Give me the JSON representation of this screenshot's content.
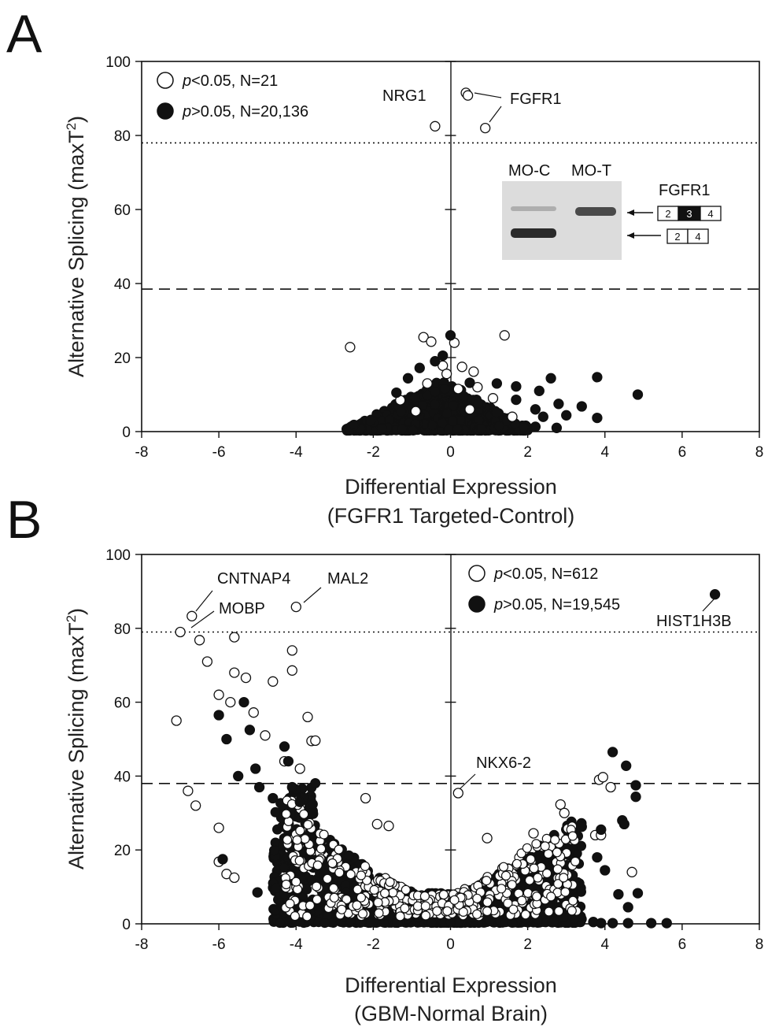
{
  "chart_data": [
    {
      "type": "scatter",
      "panel": "A",
      "xlabel": "Differential Expression",
      "xlabel2": "(FGFR1 Targeted-Control)",
      "ylabel": "Alternative Splicing (maxT",
      "ylabel_sup": "2",
      "ylabel_close": ")",
      "xlim": [
        -8,
        8
      ],
      "ylim": [
        0,
        100
      ],
      "xticks": [
        -8,
        -6,
        -4,
        -2,
        0,
        2,
        4,
        6,
        8
      ],
      "yticks": [
        0,
        20,
        40,
        60,
        80,
        100
      ],
      "xtick_labels": [
        "-8",
        "-6",
        "-4",
        "-2",
        "0",
        "2",
        "4",
        "6",
        "8"
      ],
      "ytick_labels": [
        "0",
        "20",
        "40",
        "60",
        "80",
        "100"
      ],
      "thresholds": {
        "dotted": 78,
        "dashed": 38.5
      },
      "legend": {
        "placement": "top-left",
        "open": {
          "p": "p",
          "text": "<0.05, N=21"
        },
        "filled": {
          "p": "p",
          "text": ">0.05, N=20,136"
        }
      },
      "series": [
        {
          "name": "p<0.05",
          "marker": "open",
          "points": [
            [
              -0.4,
              82.5
            ],
            [
              0.4,
              91.5
            ],
            [
              0.45,
              90.8
            ],
            [
              0.9,
              82
            ],
            [
              -2.6,
              22.8
            ],
            [
              -0.7,
              25.5
            ],
            [
              -0.5,
              24.3
            ],
            [
              0.1,
              24
            ],
            [
              1.4,
              26
            ],
            [
              0.3,
              17.5
            ],
            [
              -0.2,
              17.8
            ],
            [
              0.6,
              16.2
            ],
            [
              -0.1,
              15.6
            ],
            [
              0.7,
              12
            ],
            [
              -0.6,
              13
            ],
            [
              0.2,
              11.5
            ],
            [
              1.1,
              9
            ],
            [
              -1.3,
              8.5
            ],
            [
              0.5,
              6
            ],
            [
              -0.9,
              5.5
            ],
            [
              1.6,
              4
            ]
          ]
        },
        {
          "name": "p>0.05",
          "marker": "filled",
          "points": [
            [
              4.85,
              10
            ],
            [
              3.8,
              14.7
            ],
            [
              2.6,
              14.4
            ],
            [
              3.8,
              3.7
            ],
            [
              3.4,
              6.8
            ],
            [
              2.8,
              7.5
            ],
            [
              2.3,
              11
            ],
            [
              2.2,
              6
            ],
            [
              1.7,
              12.2
            ],
            [
              1.7,
              8.6
            ],
            [
              -0.4,
              19
            ],
            [
              -0.8,
              17.2
            ],
            [
              0.0,
              26
            ],
            [
              -1.1,
              14.4
            ],
            [
              0.5,
              13.2
            ],
            [
              -0.2,
              20.5
            ],
            [
              -2.5,
              1.8
            ],
            [
              2.75,
              1.0
            ],
            [
              2.2,
              1.3
            ],
            [
              2.4,
              4.0
            ],
            [
              3.0,
              4.4
            ],
            [
              -1.4,
              10.5
            ],
            [
              1.2,
              13.0
            ]
          ]
        }
      ],
      "cluster": {
        "x_range": [
          -2.7,
          2.0
        ],
        "y_peak": 14
      },
      "annotations": [
        {
          "text": "NRG1",
          "x": -0.4,
          "y": 82.5
        },
        {
          "text": "FGFR1",
          "x": 0.9,
          "y": 82
        }
      ],
      "inset": {
        "lanes": [
          "MO-C",
          "MO-T"
        ],
        "gene": "FGFR1",
        "isoform_long": [
          "2",
          "3",
          "4"
        ],
        "isoform_short": [
          "2",
          "4"
        ]
      }
    },
    {
      "type": "scatter",
      "panel": "B",
      "xlabel": "Differential Expression",
      "xlabel2": "(GBM-Normal Brain)",
      "ylabel": "Alternative Splicing (maxT",
      "ylabel_sup": "2",
      "ylabel_close": ")",
      "xlim": [
        -8,
        8
      ],
      "ylim": [
        0,
        100
      ],
      "xticks": [
        -8,
        -6,
        -4,
        -2,
        0,
        2,
        4,
        6,
        8
      ],
      "yticks": [
        0,
        20,
        40,
        60,
        80,
        100
      ],
      "xtick_labels": [
        "-8",
        "-6",
        "-4",
        "-2",
        "0",
        "2",
        "4",
        "6",
        "8"
      ],
      "ytick_labels": [
        "0",
        "20",
        "40",
        "60",
        "80",
        "100"
      ],
      "thresholds": {
        "dotted": 79,
        "dashed": 38
      },
      "legend": {
        "placement": "top-right",
        "open": {
          "p": "p",
          "text": "<0.05, N=612"
        },
        "filled": {
          "p": "p",
          "text": ">0.05, N=19,545"
        }
      },
      "series": [
        {
          "name": "p<0.05",
          "marker": "open",
          "points": [
            [
              -6.7,
              83.3
            ],
            [
              -7.0,
              79
            ],
            [
              -4.0,
              85.8
            ],
            [
              -6.5,
              76.8
            ],
            [
              -5.6,
              77.6
            ],
            [
              -6.3,
              71
            ],
            [
              -5.6,
              68
            ],
            [
              -5.3,
              66.6
            ],
            [
              -4.6,
              65.6
            ],
            [
              -6.0,
              62
            ],
            [
              -5.7,
              60
            ],
            [
              -7.1,
              55
            ],
            [
              -6.8,
              36
            ],
            [
              -6.6,
              32
            ],
            [
              -6.0,
              26
            ],
            [
              -6.0,
              16.8
            ],
            [
              -5.8,
              13.5
            ],
            [
              -5.6,
              12.5
            ],
            [
              -5.1,
              57.2
            ],
            [
              -4.8,
              51
            ],
            [
              -4.1,
              74
            ],
            [
              -4.1,
              68.6
            ],
            [
              -3.7,
              56
            ],
            [
              -3.6,
              49.5
            ],
            [
              -3.5,
              49.6
            ],
            [
              -4.3,
              44
            ],
            [
              -3.9,
              42
            ],
            [
              -2.2,
              34
            ],
            [
              -1.9,
              27
            ],
            [
              -1.6,
              26.5
            ],
            [
              0.2,
              35.4
            ],
            [
              3.85,
              39
            ],
            [
              3.95,
              39.7
            ],
            [
              4.15,
              37
            ],
            [
              4.7,
              14
            ],
            [
              2.85,
              32.3
            ],
            [
              2.95,
              30
            ],
            [
              0.95,
              23.2
            ],
            [
              2.15,
              24.5
            ],
            [
              3.75,
              24
            ],
            [
              3.9,
              24
            ]
          ]
        },
        {
          "name": "p>0.05",
          "marker": "filled",
          "points": [
            [
              6.85,
              89.2
            ],
            [
              -6.0,
              56.5
            ],
            [
              -5.35,
              60
            ],
            [
              -5.2,
              52.5
            ],
            [
              -5.05,
              42
            ],
            [
              -4.95,
              37
            ],
            [
              -4.6,
              34
            ],
            [
              -4.1,
              37
            ],
            [
              -4.2,
              44
            ],
            [
              -5.9,
              17.5
            ],
            [
              -5.0,
              8.5
            ],
            [
              4.2,
              46.5
            ],
            [
              4.55,
              42.8
            ],
            [
              4.8,
              37.5
            ],
            [
              4.8,
              34.4
            ],
            [
              4.45,
              28
            ],
            [
              4.5,
              27
            ],
            [
              3.4,
              26.3
            ],
            [
              3.9,
              25.5
            ],
            [
              3.8,
              18
            ],
            [
              4.0,
              14.5
            ],
            [
              4.35,
              8
            ],
            [
              4.85,
              8.3
            ],
            [
              4.6,
              4.5
            ],
            [
              3.7,
              0.5
            ],
            [
              3.9,
              0.2
            ],
            [
              4.2,
              0.2
            ],
            [
              4.6,
              0.2
            ],
            [
              5.2,
              0.2
            ],
            [
              5.6,
              0.2
            ],
            [
              -5.5,
              40
            ],
            [
              -5.8,
              50
            ],
            [
              -4.3,
              48
            ],
            [
              -3.9,
              33
            ]
          ]
        }
      ],
      "cluster": {
        "x_range": [
          -4.6,
          3.4
        ],
        "y_peak": 30
      },
      "annotations": [
        {
          "text": "CNTNAP4",
          "x": -6.7,
          "y": 83.3
        },
        {
          "text": "MOBP",
          "x": -7.0,
          "y": 79
        },
        {
          "text": "MAL2",
          "x": -4.0,
          "y": 85.8
        },
        {
          "text": "HIST1H3B",
          "x": 6.85,
          "y": 89.2
        },
        {
          "text": "NKX6-2",
          "x": 0.2,
          "y": 35.4
        }
      ]
    }
  ],
  "panels": {
    "A": {
      "letter": "A"
    },
    "B": {
      "letter": "B"
    }
  },
  "colors": {
    "ink": "#111111",
    "open_fill": "#ffffff",
    "gel_bg": "#dcdcdc",
    "gel_band": "#2a2a2a"
  }
}
